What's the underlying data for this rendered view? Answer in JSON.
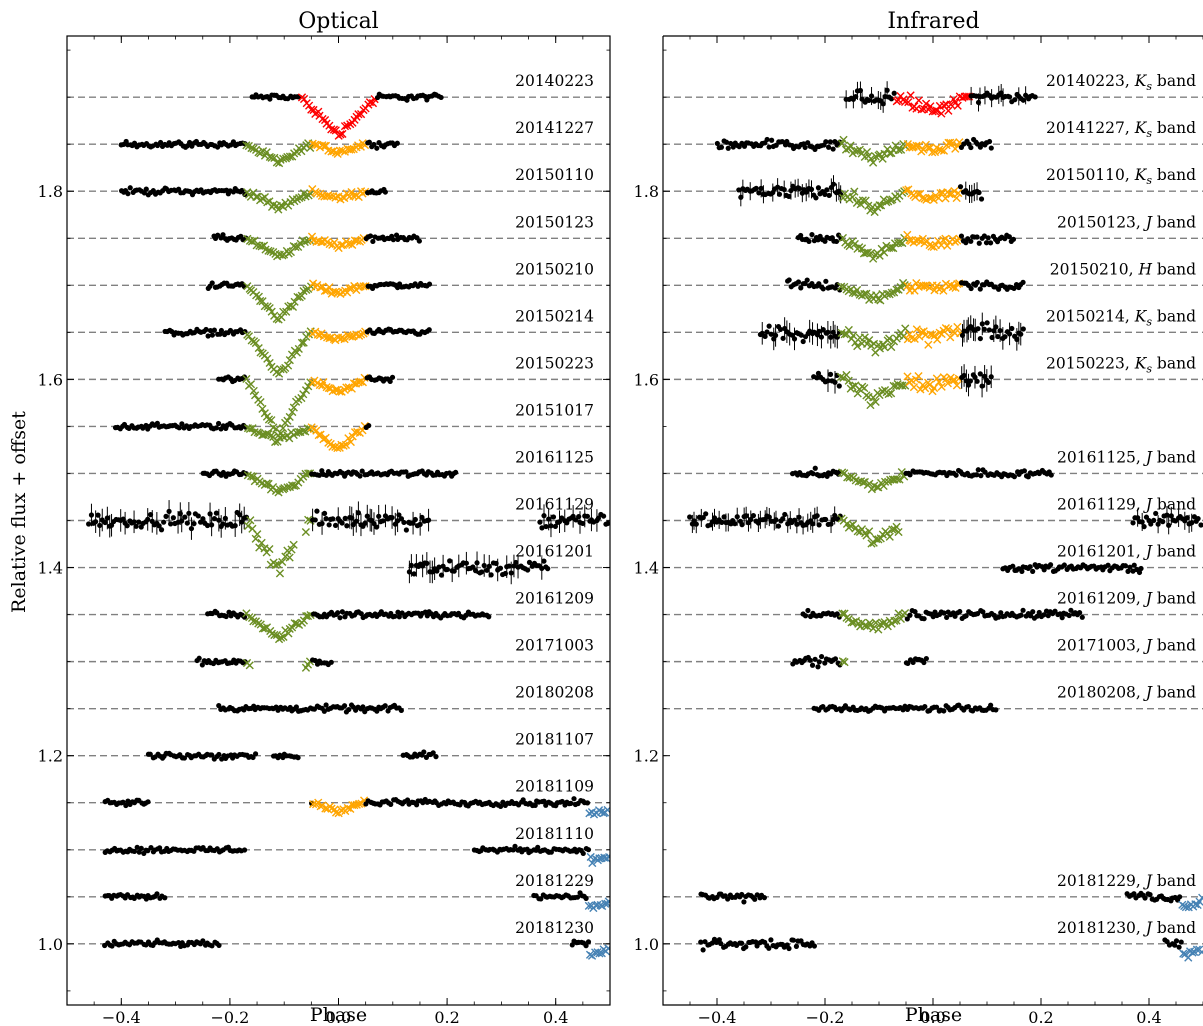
{
  "colors": {
    "base": "#000000",
    "primary_eclipse_main": "#6b8e23",
    "secondary_eclipse_main": "#ffa500",
    "primary_eclipse_first": "#ff0000",
    "edge_eclipse": "#4682b4",
    "offset_line": "#808080"
  },
  "chart_data": [
    {
      "type": "scatter",
      "title": "Optical",
      "xlabel": "Phase",
      "ylabel": "Relative flux + offset",
      "xlim": [
        -0.5,
        0.5
      ],
      "ylim": [
        0.935,
        1.965
      ],
      "xticks": [
        "−0.4",
        "−0.2",
        "0.0",
        "0.2",
        "0.4"
      ],
      "yticks": [
        "1.0",
        "1.2",
        "1.4",
        "1.6",
        "1.8"
      ],
      "ytick_values": [
        1.0,
        1.2,
        1.4,
        1.6,
        1.8
      ],
      "xtick_values": [
        -0.4,
        -0.2,
        0.0,
        0.2,
        0.4
      ],
      "series": [
        {
          "label": "20140223",
          "offset": 1.9,
          "depth_primary": 0.04,
          "depth_secondary": 0.0,
          "primary_color": "#ff0000",
          "segments": [
            [
              -0.16,
              0.19
            ]
          ]
        },
        {
          "label": "20141227",
          "offset": 1.85,
          "depth_primary": 0.02,
          "depth_secondary": 0.008,
          "segments": [
            [
              -0.4,
              0.11
            ]
          ]
        },
        {
          "label": "20150110",
          "offset": 1.8,
          "depth_primary": 0.018,
          "depth_secondary": 0.008,
          "segments": [
            [
              -0.4,
              0.09
            ]
          ]
        },
        {
          "label": "20150123",
          "offset": 1.75,
          "depth_primary": 0.02,
          "depth_secondary": 0.008,
          "segments": [
            [
              -0.23,
              0.15
            ]
          ]
        },
        {
          "label": "20150210",
          "offset": 1.7,
          "depth_primary": 0.035,
          "depth_secondary": 0.008,
          "segments": [
            [
              -0.24,
              0.17
            ]
          ]
        },
        {
          "label": "20150214",
          "offset": 1.65,
          "depth_primary": 0.045,
          "depth_secondary": 0.008,
          "segments": [
            [
              -0.32,
              0.17
            ]
          ]
        },
        {
          "label": "20150223",
          "offset": 1.6,
          "depth_primary": 0.06,
          "depth_secondary": 0.015,
          "segments": [
            [
              -0.22,
              0.1
            ]
          ]
        },
        {
          "label": "20151017",
          "offset": 1.55,
          "depth_primary": 0.015,
          "depth_secondary": 0.025,
          "segments": [
            [
              -0.41,
              0.06
            ]
          ]
        },
        {
          "label": "20161125",
          "offset": 1.5,
          "depth_primary": 0.02,
          "depth_secondary": 0.0,
          "segments": [
            [
              -0.25,
              0.22
            ]
          ]
        },
        {
          "label": "20161129",
          "offset": 1.45,
          "depth_primary": 0.05,
          "depth_secondary": 0.0,
          "scatter": 0.01,
          "segments": [
            [
              -0.46,
              -0.08
            ],
            [
              -0.06,
              0.17
            ],
            [
              0.37,
              0.5
            ]
          ]
        },
        {
          "label": "20161201",
          "offset": 1.4,
          "depth_primary": 0.0,
          "depth_secondary": 0.0,
          "scatter": 0.01,
          "segments": [
            [
              0.13,
              0.39
            ]
          ]
        },
        {
          "label": "20161209",
          "offset": 1.35,
          "depth_primary": 0.025,
          "depth_secondary": 0.0,
          "segments": [
            [
              -0.24,
              0.28
            ]
          ]
        },
        {
          "label": "20171003",
          "offset": 1.3,
          "depth_primary": 0.03,
          "depth_secondary": 0.0,
          "segments": [
            [
              -0.26,
              -0.16
            ],
            [
              -0.06,
              -0.01
            ]
          ]
        },
        {
          "label": "20180208",
          "offset": 1.25,
          "depth_primary": 0.0,
          "depth_secondary": 0.0,
          "segments": [
            [
              -0.22,
              0.12
            ]
          ]
        },
        {
          "label": "20181107",
          "offset": 1.2,
          "depth_primary": 0.0,
          "depth_secondary": 0.0,
          "segments": [
            [
              -0.35,
              -0.15
            ],
            [
              -0.12,
              -0.07
            ],
            [
              0.12,
              0.18
            ]
          ]
        },
        {
          "label": "20181109",
          "offset": 1.15,
          "depth_primary": 0.0,
          "depth_secondary": 0.008,
          "edge_eclipse": true,
          "segments": [
            [
              -0.43,
              -0.35
            ],
            [
              -0.05,
              0.5
            ]
          ]
        },
        {
          "label": "20181110",
          "offset": 1.1,
          "depth_primary": 0.0,
          "depth_secondary": 0.0,
          "edge_eclipse": true,
          "segments": [
            [
              -0.43,
              -0.17
            ],
            [
              0.25,
              0.5
            ]
          ]
        },
        {
          "label": "20181229",
          "offset": 1.05,
          "depth_primary": 0.0,
          "depth_secondary": 0.0,
          "edge_eclipse": true,
          "segments": [
            [
              -0.43,
              -0.32
            ],
            [
              0.36,
              0.5
            ]
          ]
        },
        {
          "label": "20181230",
          "offset": 1.0,
          "depth_primary": 0.0,
          "depth_secondary": 0.0,
          "edge_eclipse": true,
          "segments": [
            [
              -0.43,
              -0.22
            ],
            [
              0.43,
              0.5
            ]
          ]
        }
      ]
    },
    {
      "type": "scatter",
      "title": "Infrared",
      "xlabel": "Phase",
      "ylabel": "",
      "xlim": [
        -0.5,
        0.5
      ],
      "ylim": [
        0.935,
        1.965
      ],
      "xticks": [
        "−0.4",
        "−0.2",
        "0.0",
        "0.2",
        "0.4"
      ],
      "yticks": [
        "1.0",
        "1.2",
        "1.4",
        "1.6",
        "1.8"
      ],
      "ytick_values": [
        1.0,
        1.2,
        1.4,
        1.6,
        1.8
      ],
      "xtick_values": [
        -0.4,
        -0.2,
        0.0,
        0.2,
        0.4
      ],
      "series": [
        {
          "label": "20140223, ",
          "band": "K",
          "band_sub": "s",
          "suffix": " band",
          "offset": 1.9,
          "depth_primary": 0.015,
          "depth_secondary": 0.0,
          "primary_color": "#ff0000",
          "scatter": 0.008,
          "segments": [
            [
              -0.16,
              0.19
            ]
          ]
        },
        {
          "label": "20141227, ",
          "band": "K",
          "band_sub": "s",
          "suffix": " band",
          "offset": 1.85,
          "depth_primary": 0.015,
          "depth_secondary": 0.005,
          "scatter": 0.006,
          "segments": [
            [
              -0.4,
              0.11
            ]
          ]
        },
        {
          "label": "20150110, ",
          "band": "K",
          "band_sub": "s",
          "suffix": " band",
          "offset": 1.8,
          "depth_primary": 0.02,
          "depth_secondary": 0.008,
          "scatter": 0.008,
          "segments": [
            [
              -0.36,
              0.09
            ]
          ]
        },
        {
          "label": "20150123, ",
          "band": "J",
          "band_sub": "",
          "suffix": " band",
          "offset": 1.75,
          "depth_primary": 0.02,
          "depth_secondary": 0.008,
          "scatter": 0.006,
          "segments": [
            [
              -0.25,
              0.15
            ]
          ]
        },
        {
          "label": "20150210, ",
          "band": "H",
          "band_sub": "",
          "suffix": " band",
          "offset": 1.7,
          "depth_primary": 0.015,
          "depth_secondary": 0.003,
          "scatter": 0.006,
          "segments": [
            [
              -0.27,
              0.17
            ]
          ]
        },
        {
          "label": "20150214, ",
          "band": "K",
          "band_sub": "s",
          "suffix": " band",
          "offset": 1.65,
          "depth_primary": 0.015,
          "depth_secondary": 0.005,
          "scatter": 0.01,
          "segments": [
            [
              -0.32,
              0.17
            ]
          ]
        },
        {
          "label": "20150223, ",
          "band": "K",
          "band_sub": "s",
          "suffix": " band",
          "offset": 1.6,
          "depth_primary": 0.02,
          "depth_secondary": 0.005,
          "scatter": 0.01,
          "segments": [
            [
              -0.22,
              0.11
            ]
          ]
        },
        {
          "label": "20161125, ",
          "band": "J",
          "band_sub": "",
          "suffix": " band",
          "offset": 1.5,
          "depth_primary": 0.015,
          "depth_secondary": 0.0,
          "scatter": 0.005,
          "segments": [
            [
              -0.26,
              0.22
            ]
          ]
        },
        {
          "label": "20161129, ",
          "band": "J",
          "band_sub": "",
          "suffix": " band",
          "offset": 1.45,
          "depth_primary": 0.02,
          "depth_secondary": 0.0,
          "scatter": 0.008,
          "segments": [
            [
              -0.45,
              -0.06
            ],
            [
              0.37,
              0.5
            ]
          ]
        },
        {
          "label": "20161201, ",
          "band": "J",
          "band_sub": "",
          "suffix": " band",
          "offset": 1.4,
          "depth_primary": 0.0,
          "depth_secondary": 0.0,
          "scatter": 0.006,
          "segments": [
            [
              0.13,
              0.39
            ]
          ]
        },
        {
          "label": "20161209, ",
          "band": "J",
          "band_sub": "",
          "suffix": " band",
          "offset": 1.35,
          "depth_primary": 0.015,
          "depth_secondary": 0.0,
          "scatter": 0.005,
          "segments": [
            [
              -0.24,
              0.28
            ]
          ]
        },
        {
          "label": "20171003, ",
          "band": "J",
          "band_sub": "",
          "suffix": " band",
          "offset": 1.3,
          "depth_primary": 0.02,
          "depth_secondary": 0.0,
          "scatter": 0.006,
          "segments": [
            [
              -0.26,
              -0.16
            ],
            [
              -0.05,
              -0.01
            ]
          ]
        },
        {
          "label": "20180208, ",
          "band": "J",
          "band_sub": "",
          "suffix": " band",
          "offset": 1.25,
          "depth_primary": 0.0,
          "depth_secondary": 0.0,
          "scatter": 0.004,
          "segments": [
            [
              -0.22,
              0.12
            ]
          ]
        },
        {
          "label": "20181229, ",
          "band": "J",
          "band_sub": "",
          "suffix": " band",
          "offset": 1.05,
          "depth_primary": 0.0,
          "depth_secondary": 0.0,
          "edge_eclipse": true,
          "scatter": 0.006,
          "segments": [
            [
              -0.43,
              -0.31
            ],
            [
              0.36,
              0.5
            ]
          ]
        },
        {
          "label": "20181230, ",
          "band": "J",
          "band_sub": "",
          "suffix": " band",
          "offset": 1.0,
          "depth_primary": 0.0,
          "depth_secondary": 0.0,
          "edge_eclipse": true,
          "scatter": 0.006,
          "segments": [
            [
              -0.43,
              -0.22
            ],
            [
              0.43,
              0.5
            ]
          ]
        }
      ]
    }
  ]
}
